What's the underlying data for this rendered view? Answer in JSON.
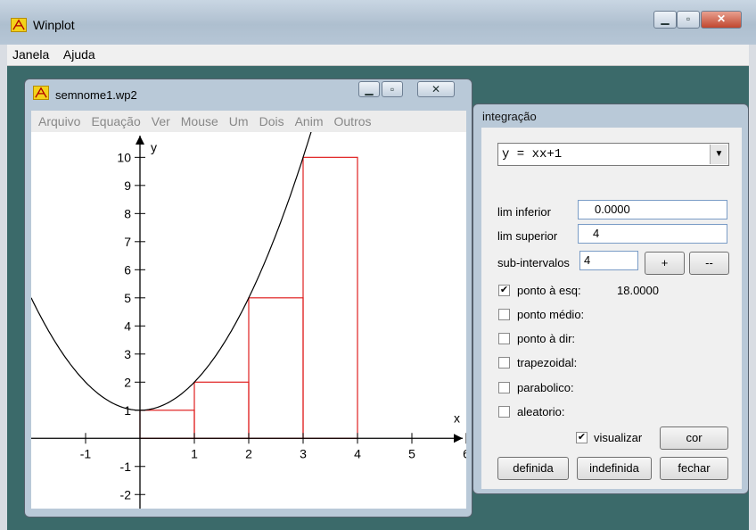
{
  "main_window": {
    "title": "Winplot",
    "menu": [
      "Janela",
      "Ajuda"
    ]
  },
  "doc_window": {
    "title": "semnome1.wp2",
    "menu": [
      "Arquivo",
      "Equação",
      "Ver",
      "Mouse",
      "Um",
      "Dois",
      "Anim",
      "Outros"
    ]
  },
  "plot": {
    "x_label": "x",
    "y_label": "y",
    "x_ticks": [
      "-1",
      "1",
      "2",
      "3",
      "4",
      "5",
      "6"
    ],
    "y_ticks": [
      "-2",
      "-1",
      "1",
      "2",
      "3",
      "4",
      "5",
      "6",
      "7",
      "8",
      "9",
      "10"
    ]
  },
  "chart_data": {
    "type": "line",
    "function": "y = x^2 + 1",
    "xlim": [
      -2,
      6
    ],
    "ylim": [
      -2.5,
      10.9
    ],
    "curve": {
      "name": "y = xx+1",
      "color": "#000000"
    },
    "rectangles": {
      "method": "left",
      "color": "#e02020",
      "items": [
        {
          "x0": 0,
          "x1": 1,
          "h": 1
        },
        {
          "x0": 1,
          "x1": 2,
          "h": 2
        },
        {
          "x0": 2,
          "x1": 3,
          "h": 5
        },
        {
          "x0": 3,
          "x1": 4,
          "h": 10
        }
      ]
    }
  },
  "integration": {
    "title": "integração",
    "equation": "y = xx+1",
    "lower_label": "lim inferior",
    "lower_value": "0.0000",
    "upper_label": "lim superior",
    "upper_value": "4",
    "subint_label": "sub-intervalos",
    "subint_value": "4",
    "plus_label": "+",
    "minus_label": "--",
    "options": [
      {
        "label": "ponto à esq:",
        "checked": true,
        "result": "18.0000"
      },
      {
        "label": "ponto médio:",
        "checked": false,
        "result": ""
      },
      {
        "label": "ponto à dir:",
        "checked": false,
        "result": ""
      },
      {
        "label": "trapezoidal:",
        "checked": false,
        "result": ""
      },
      {
        "label": "parabolico:",
        "checked": false,
        "result": ""
      },
      {
        "label": "aleatorio:",
        "checked": false,
        "result": ""
      }
    ],
    "visualize_label": "visualizar",
    "visualize_checked": true,
    "color_label": "cor",
    "defined_label": "definida",
    "indefined_label": "indefinida",
    "close_label": "fechar"
  }
}
